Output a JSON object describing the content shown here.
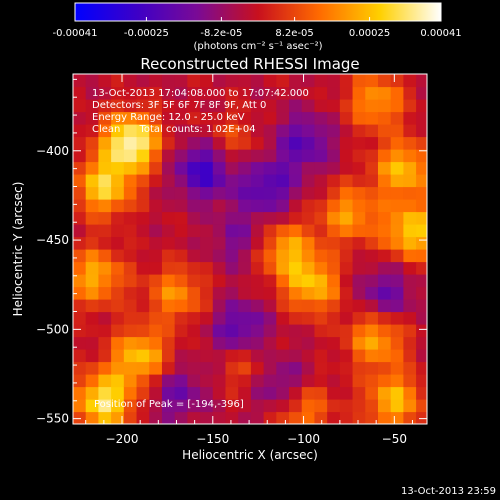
{
  "colorbar": {
    "tick_labels": [
      "-0.00041",
      "-0.00025",
      "-8.2e-05",
      "8.2e-05",
      "0.00025",
      "0.00041"
    ],
    "tick_values": [
      -0.00041,
      -0.00025,
      -8.2e-05,
      8.2e-05,
      0.00025,
      0.00041
    ],
    "range": [
      -0.00041,
      0.00041
    ],
    "unit_label": "(photons cm⁻² s⁻¹ asec⁻²)",
    "colors": [
      "#0000ff",
      "#3c00c8",
      "#7a0a96",
      "#c8101e",
      "#ff6a00",
      "#ffd000",
      "#ffffff"
    ]
  },
  "chart_data": {
    "type": "heatmap",
    "title": "Reconstructed RHESSI Image",
    "xlabel": "Heliocentric X (arcsec)",
    "ylabel": "Heliocentric Y (arcsec)",
    "xlim": [
      -227,
      -32
    ],
    "ylim": [
      -553,
      -357
    ],
    "x_ticks": [
      -200,
      -150,
      -100,
      -50
    ],
    "y_ticks": [
      -400,
      -450,
      -500,
      -550
    ],
    "peak": [
      -194,
      -396
    ],
    "hot_regions": [
      {
        "x": -195,
        "y": -395,
        "value": 0.00041
      },
      {
        "x": -210,
        "y": -420,
        "value": 0.0003
      },
      {
        "x": -215,
        "y": -470,
        "value": 0.00025
      },
      {
        "x": -190,
        "y": -515,
        "value": 0.00028
      },
      {
        "x": -210,
        "y": -540,
        "value": 0.00035
      },
      {
        "x": -170,
        "y": -480,
        "value": 0.0002
      },
      {
        "x": -110,
        "y": -455,
        "value": 0.00024
      },
      {
        "x": -95,
        "y": -475,
        "value": 0.00026
      },
      {
        "x": -75,
        "y": -435,
        "value": 0.00022
      },
      {
        "x": -45,
        "y": -410,
        "value": 0.00027
      },
      {
        "x": -40,
        "y": -445,
        "value": 0.0003
      },
      {
        "x": -60,
        "y": -505,
        "value": 0.00024
      },
      {
        "x": -50,
        "y": -540,
        "value": 0.00026
      },
      {
        "x": -100,
        "y": -545,
        "value": 0.00018
      },
      {
        "x": -130,
        "y": -520,
        "value": 0.00015
      },
      {
        "x": -60,
        "y": -372,
        "value": 0.00022
      },
      {
        "x": -140,
        "y": -395,
        "value": 0.00012
      }
    ],
    "cold_regions": [
      {
        "x": -155,
        "y": -410,
        "value": -0.00026
      },
      {
        "x": -120,
        "y": -420,
        "value": -0.0002
      },
      {
        "x": -100,
        "y": -395,
        "value": -0.00018
      },
      {
        "x": -135,
        "y": -500,
        "value": -0.0002
      },
      {
        "x": -115,
        "y": -530,
        "value": -0.00018
      },
      {
        "x": -170,
        "y": -535,
        "value": -0.00015
      },
      {
        "x": -55,
        "y": -480,
        "value": -0.00016
      },
      {
        "x": -135,
        "y": -450,
        "value": -0.00012
      }
    ]
  },
  "annotations": {
    "line1": "13-Oct-2013 17:04:08.000 to 17:07:42.000",
    "line2": "Detectors: 3F 5F 6F 7F 8F 9F, Att 0",
    "line3": "Energy Range: 12.0 - 25.0 keV",
    "line4": "Clean      Total counts: 1.02E+04",
    "peak_label": "Position of Peak = [-194,-396]"
  },
  "footer_timestamp": "13-Oct-2013 23:59"
}
